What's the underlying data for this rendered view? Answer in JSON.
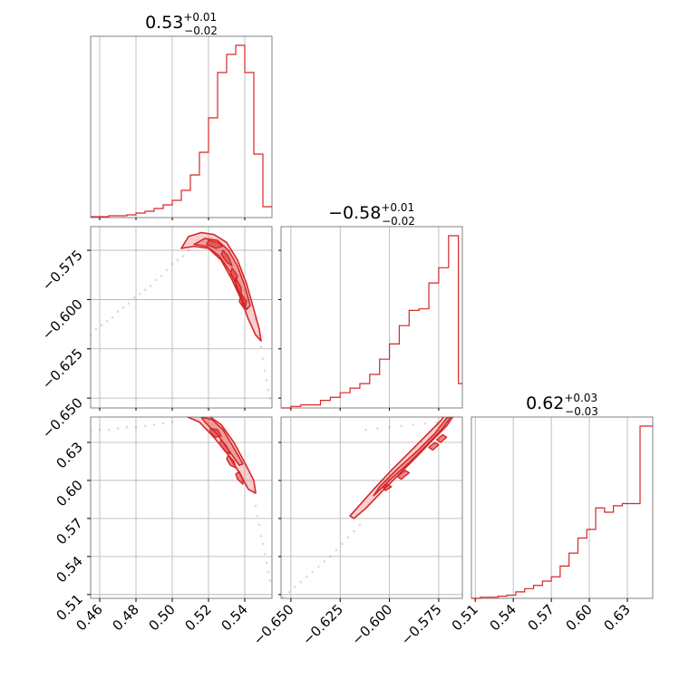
{
  "chart_data": {
    "type": "corner",
    "color": "#d62728",
    "parameters": [
      {
        "title": {
          "median": "0.53",
          "plus": "+0.01",
          "minus": "−0.02"
        },
        "range": [
          0.455,
          0.555
        ],
        "ticks": [
          0.46,
          0.48,
          0.5,
          0.52,
          0.54
        ],
        "tick_labels": [
          "0.46",
          "0.48",
          "0.50",
          "0.52",
          "0.54"
        ]
      },
      {
        "title": {
          "median": "−0.58",
          "plus": "+0.01",
          "minus": "−0.02"
        },
        "range": [
          -0.655,
          -0.563
        ],
        "ticks": [
          -0.65,
          -0.625,
          -0.6,
          -0.575
        ],
        "tick_labels": [
          "−0.650",
          "−0.625",
          "−0.600",
          "−0.575"
        ]
      },
      {
        "title": {
          "median": "0.62",
          "plus": "+0.03",
          "minus": "−0.03"
        },
        "range": [
          0.507,
          0.65
        ],
        "ticks": [
          0.51,
          0.54,
          0.57,
          0.6,
          0.63
        ],
        "tick_labels": [
          "0.51",
          "0.54",
          "0.57",
          "0.60",
          "0.63"
        ]
      }
    ],
    "histograms": [
      {
        "edges": [
          0.455,
          0.46,
          0.465,
          0.47,
          0.475,
          0.48,
          0.485,
          0.49,
          0.495,
          0.5,
          0.505,
          0.51,
          0.515,
          0.52,
          0.525,
          0.53,
          0.535,
          0.54,
          0.545,
          0.55,
          0.555
        ],
        "counts": [
          1,
          1,
          2,
          2,
          3,
          5,
          7,
          10,
          14,
          19,
          30,
          47,
          72,
          110,
          160,
          180,
          190,
          160,
          70,
          12
        ]
      },
      {
        "edges": [
          -0.655,
          -0.65,
          -0.645,
          -0.64,
          -0.635,
          -0.63,
          -0.625,
          -0.62,
          -0.615,
          -0.61,
          -0.605,
          -0.6,
          -0.595,
          -0.59,
          -0.585,
          -0.58,
          -0.575,
          -0.57,
          -0.565,
          -0.563
        ],
        "counts": [
          0,
          1,
          2,
          2,
          5,
          7,
          10,
          13,
          16,
          22,
          32,
          42,
          54,
          64,
          65,
          82,
          92,
          113,
          16
        ]
      },
      {
        "edges": [
          0.507,
          0.514,
          0.521,
          0.528,
          0.535,
          0.542,
          0.549,
          0.556,
          0.563,
          0.57,
          0.577,
          0.584,
          0.591,
          0.598,
          0.605,
          0.612,
          0.619,
          0.626,
          0.633,
          0.64,
          0.65
        ],
        "counts": [
          0,
          1,
          1,
          2,
          3,
          6,
          9,
          12,
          16,
          20,
          30,
          42,
          56,
          64,
          84,
          80,
          86,
          88,
          88,
          160
        ]
      }
    ],
    "scatter": {
      "p1_p0": [
        [
          0.455,
          -0.618
        ],
        [
          0.458,
          -0.615
        ],
        [
          0.461,
          -0.613
        ],
        [
          0.464,
          -0.611
        ],
        [
          0.467,
          -0.609
        ],
        [
          0.47,
          -0.606
        ],
        [
          0.473,
          -0.604
        ],
        [
          0.476,
          -0.602
        ],
        [
          0.479,
          -0.599
        ],
        [
          0.482,
          -0.597
        ],
        [
          0.485,
          -0.595
        ],
        [
          0.488,
          -0.593
        ],
        [
          0.491,
          -0.59
        ],
        [
          0.494,
          -0.588
        ],
        [
          0.497,
          -0.585
        ],
        [
          0.5,
          -0.582
        ],
        [
          0.503,
          -0.58
        ],
        [
          0.506,
          -0.578
        ],
        [
          0.509,
          -0.575
        ],
        [
          0.546,
          -0.61
        ],
        [
          0.548,
          -0.618
        ],
        [
          0.549,
          -0.624
        ],
        [
          0.55,
          -0.63
        ],
        [
          0.551,
          -0.636
        ],
        [
          0.552,
          -0.641
        ],
        [
          0.553,
          -0.646
        ],
        [
          0.554,
          -0.65
        ]
      ],
      "p2_p0": [
        [
          0.455,
          0.639
        ],
        [
          0.46,
          0.64
        ],
        [
          0.465,
          0.64
        ],
        [
          0.47,
          0.641
        ],
        [
          0.475,
          0.642
        ],
        [
          0.48,
          0.642
        ],
        [
          0.485,
          0.643
        ],
        [
          0.49,
          0.644
        ],
        [
          0.495,
          0.645
        ],
        [
          0.5,
          0.646
        ],
        [
          0.545,
          0.59
        ],
        [
          0.546,
          0.58
        ],
        [
          0.547,
          0.572
        ],
        [
          0.548,
          0.565
        ],
        [
          0.549,
          0.556
        ],
        [
          0.55,
          0.55
        ],
        [
          0.551,
          0.542
        ],
        [
          0.552,
          0.535
        ],
        [
          0.553,
          0.528
        ],
        [
          0.554,
          0.521
        ]
      ],
      "p2_p1": [
        [
          -0.654,
          0.508
        ],
        [
          -0.651,
          0.512
        ],
        [
          -0.648,
          0.516
        ],
        [
          -0.645,
          0.52
        ],
        [
          -0.642,
          0.524
        ],
        [
          -0.639,
          0.528
        ],
        [
          -0.636,
          0.532
        ],
        [
          -0.633,
          0.536
        ],
        [
          -0.63,
          0.54
        ],
        [
          -0.627,
          0.545
        ],
        [
          -0.624,
          0.55
        ],
        [
          -0.621,
          0.555
        ],
        [
          -0.618,
          0.56
        ],
        [
          -0.615,
          0.565
        ],
        [
          -0.612,
          0.64
        ],
        [
          -0.606,
          0.641
        ],
        [
          -0.6,
          0.642
        ],
        [
          -0.594,
          0.643
        ],
        [
          -0.588,
          0.644
        ],
        [
          -0.582,
          0.645
        ],
        [
          -0.576,
          0.646
        ],
        [
          -0.57,
          0.647
        ]
      ]
    },
    "contours": {
      "p1_p0": [
        [
          [
            0.505,
            -0.574
          ],
          [
            0.509,
            -0.568
          ],
          [
            0.516,
            -0.566
          ],
          [
            0.523,
            -0.567
          ],
          [
            0.53,
            -0.571
          ],
          [
            0.536,
            -0.58
          ],
          [
            0.541,
            -0.592
          ],
          [
            0.545,
            -0.605
          ],
          [
            0.548,
            -0.615
          ],
          [
            0.549,
            -0.621
          ],
          [
            0.546,
            -0.618
          ],
          [
            0.542,
            -0.61
          ],
          [
            0.538,
            -0.6
          ],
          [
            0.533,
            -0.59
          ],
          [
            0.527,
            -0.58
          ],
          [
            0.52,
            -0.574
          ],
          [
            0.512,
            -0.573
          ]
        ],
        [
          [
            0.512,
            -0.572
          ],
          [
            0.518,
            -0.569
          ],
          [
            0.525,
            -0.57
          ],
          [
            0.531,
            -0.575
          ],
          [
            0.536,
            -0.583
          ],
          [
            0.54,
            -0.593
          ],
          [
            0.543,
            -0.603
          ],
          [
            0.541,
            -0.605
          ],
          [
            0.537,
            -0.596
          ],
          [
            0.532,
            -0.586
          ],
          [
            0.526,
            -0.578
          ],
          [
            0.519,
            -0.573
          ]
        ],
        [
          [
            0.52,
            -0.57
          ],
          [
            0.525,
            -0.571
          ],
          [
            0.528,
            -0.573
          ],
          [
            0.524,
            -0.574
          ],
          [
            0.519,
            -0.572
          ]
        ],
        [
          [
            0.528,
            -0.575
          ],
          [
            0.531,
            -0.578
          ],
          [
            0.533,
            -0.583
          ],
          [
            0.53,
            -0.581
          ],
          [
            0.527,
            -0.577
          ]
        ],
        [
          [
            0.533,
            -0.584
          ],
          [
            0.536,
            -0.588
          ],
          [
            0.535,
            -0.591
          ],
          [
            0.532,
            -0.587
          ]
        ],
        [
          [
            0.535,
            -0.589
          ],
          [
            0.538,
            -0.594
          ],
          [
            0.538,
            -0.598
          ],
          [
            0.535,
            -0.594
          ]
        ],
        [
          [
            0.538,
            -0.597
          ],
          [
            0.541,
            -0.601
          ],
          [
            0.54,
            -0.605
          ],
          [
            0.537,
            -0.601
          ]
        ]
      ],
      "p2_p0": [
        [
          [
            0.507,
            0.651
          ],
          [
            0.513,
            0.652
          ],
          [
            0.52,
            0.651
          ],
          [
            0.527,
            0.644
          ],
          [
            0.534,
            0.63
          ],
          [
            0.54,
            0.614
          ],
          [
            0.545,
            0.6
          ],
          [
            0.546,
            0.59
          ],
          [
            0.542,
            0.593
          ],
          [
            0.537,
            0.606
          ],
          [
            0.531,
            0.62
          ],
          [
            0.523,
            0.634
          ],
          [
            0.515,
            0.646
          ]
        ],
        [
          [
            0.516,
            0.65
          ],
          [
            0.522,
            0.648
          ],
          [
            0.528,
            0.64
          ],
          [
            0.533,
            0.628
          ],
          [
            0.539,
            0.613
          ],
          [
            0.537,
            0.612
          ],
          [
            0.531,
            0.624
          ],
          [
            0.525,
            0.636
          ],
          [
            0.518,
            0.646
          ]
        ],
        [
          [
            0.521,
            0.641
          ],
          [
            0.525,
            0.64
          ],
          [
            0.527,
            0.635
          ],
          [
            0.524,
            0.634
          ],
          [
            0.521,
            0.638
          ]
        ],
        [
          [
            0.527,
            0.632
          ],
          [
            0.53,
            0.627
          ],
          [
            0.532,
            0.621
          ],
          [
            0.529,
            0.623
          ],
          [
            0.526,
            0.629
          ]
        ],
        [
          [
            0.531,
            0.62
          ],
          [
            0.534,
            0.615
          ],
          [
            0.535,
            0.61
          ],
          [
            0.532,
            0.612
          ],
          [
            0.53,
            0.617
          ]
        ],
        [
          [
            0.537,
            0.607
          ],
          [
            0.539,
            0.601
          ],
          [
            0.539,
            0.597
          ],
          [
            0.536,
            0.601
          ],
          [
            0.535,
            0.605
          ]
        ]
      ],
      "p2_p1": [
        [
          [
            -0.618,
            0.57
          ],
          [
            -0.612,
            0.578
          ],
          [
            -0.604,
            0.591
          ],
          [
            -0.595,
            0.605
          ],
          [
            -0.586,
            0.619
          ],
          [
            -0.578,
            0.632
          ],
          [
            -0.571,
            0.643
          ],
          [
            -0.567,
            0.652
          ],
          [
            -0.565,
            0.66
          ],
          [
            -0.569,
            0.658
          ],
          [
            -0.574,
            0.647
          ],
          [
            -0.581,
            0.636
          ],
          [
            -0.59,
            0.622
          ],
          [
            -0.599,
            0.608
          ],
          [
            -0.608,
            0.593
          ],
          [
            -0.616,
            0.579
          ],
          [
            -0.62,
            0.572
          ]
        ],
        [
          [
            -0.608,
            0.588
          ],
          [
            -0.6,
            0.6
          ],
          [
            -0.59,
            0.614
          ],
          [
            -0.581,
            0.628
          ],
          [
            -0.573,
            0.641
          ],
          [
            -0.568,
            0.652
          ],
          [
            -0.571,
            0.649
          ],
          [
            -0.577,
            0.637
          ],
          [
            -0.586,
            0.623
          ],
          [
            -0.596,
            0.609
          ],
          [
            -0.605,
            0.595
          ]
        ],
        [
          [
            -0.602,
            0.592
          ],
          [
            -0.599,
            0.595
          ],
          [
            -0.601,
            0.597
          ],
          [
            -0.603,
            0.594
          ]
        ],
        [
          [
            -0.594,
            0.601
          ],
          [
            -0.59,
            0.606
          ],
          [
            -0.592,
            0.608
          ],
          [
            -0.596,
            0.603
          ]
        ],
        [
          [
            -0.578,
            0.624
          ],
          [
            -0.575,
            0.628
          ],
          [
            -0.577,
            0.63
          ],
          [
            -0.58,
            0.626
          ]
        ],
        [
          [
            -0.574,
            0.63
          ],
          [
            -0.571,
            0.634
          ],
          [
            -0.573,
            0.636
          ],
          [
            -0.576,
            0.632
          ]
        ]
      ]
    }
  }
}
